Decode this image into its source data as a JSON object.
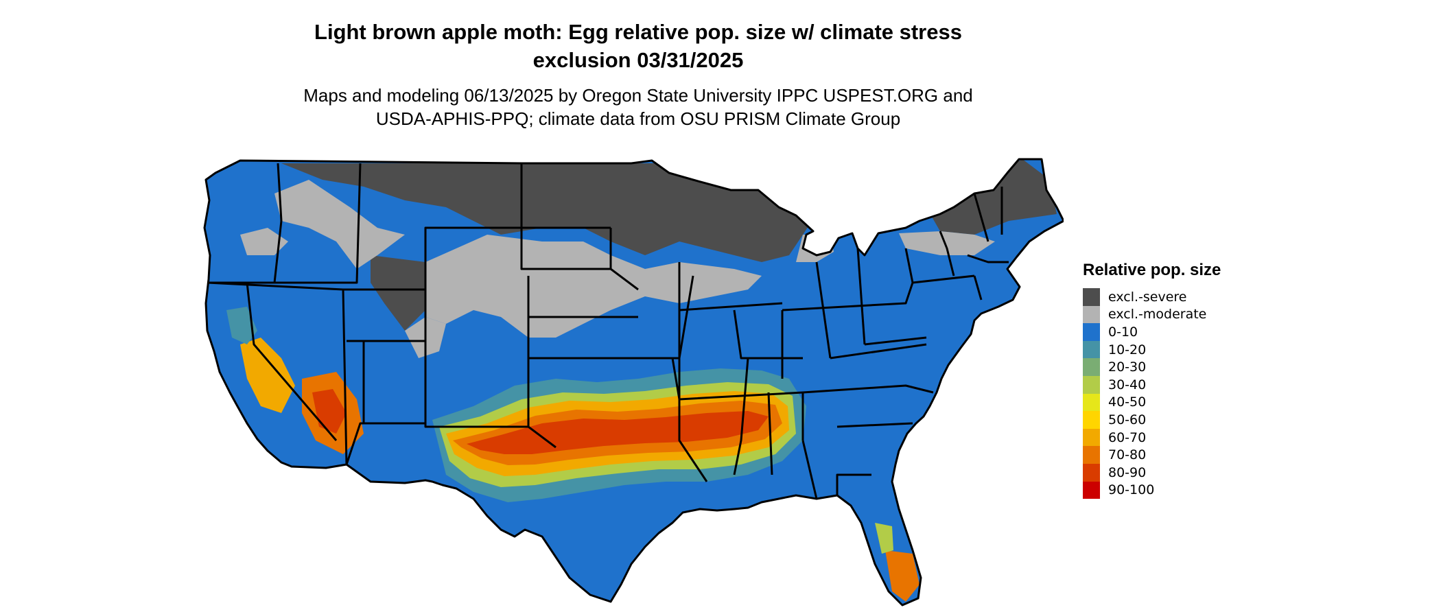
{
  "title_lines": [
    "Light brown apple moth: Egg relative pop. size w/ climate stress",
    "exclusion 03/31/2025"
  ],
  "subtitle_lines": [
    "Maps and modeling 06/13/2025 by Oregon State University IPPC USPEST.ORG and",
    "USDA-APHIS-PPQ; climate data from OSU PRISM Climate Group"
  ],
  "legend": {
    "title": "Relative pop. size",
    "items": [
      {
        "label": "excl.-severe",
        "color": "#4d4d4d"
      },
      {
        "label": "excl.-moderate",
        "color": "#b3b3b3"
      },
      {
        "label": "0-10",
        "color": "#1f72cc"
      },
      {
        "label": "10-20",
        "color": "#4593a6"
      },
      {
        "label": "20-30",
        "color": "#7aad73"
      },
      {
        "label": "30-40",
        "color": "#b2cc48"
      },
      {
        "label": "40-50",
        "color": "#e6e61a"
      },
      {
        "label": "50-60",
        "color": "#ffd500"
      },
      {
        "label": "60-70",
        "color": "#f2a900"
      },
      {
        "label": "70-80",
        "color": "#e87400"
      },
      {
        "label": "80-90",
        "color": "#d93c00"
      },
      {
        "label": "90-100",
        "color": "#cc0000"
      }
    ]
  }
}
